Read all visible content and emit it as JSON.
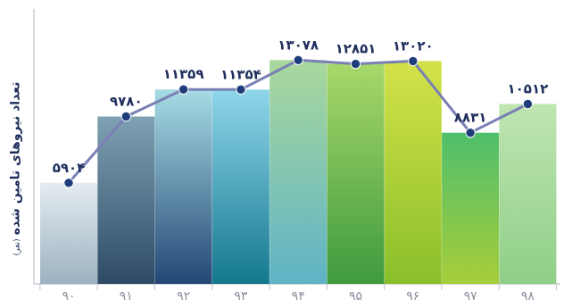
{
  "chart_data": {
    "type": "bar",
    "categories": [
      "۹۰",
      "۹۱",
      "۹۲",
      "۹۳",
      "۹۴",
      "۹۵",
      "۹۶",
      "۹۷",
      "۹۸"
    ],
    "values": [
      5904,
      9780,
      11359,
      11354,
      13078,
      12851,
      13020,
      8831,
      10512
    ],
    "value_labels": [
      "۵۹۰۴",
      "۹۷۸۰",
      "۱۱۳۵۹",
      "۱۱۳۵۴",
      "۱۳۰۷۸",
      "۱۲۸۵۱",
      "۱۳۰۲۰",
      "۸۸۳۱",
      "۱۰۵۱۲"
    ],
    "title": "",
    "xlabel": "",
    "ylabel": "تعداد نیروهای تامین شده",
    "ylabel_unit": "(نفر)",
    "ylim": [
      0,
      14500
    ],
    "grid": false,
    "legend": "none",
    "line_overlay": true,
    "colors": {
      "line": "#7a7fb5",
      "marker": "#1f3d7a",
      "label": "#1f2f5c",
      "axis": "#c8ccd6",
      "tick_label": "#8a8f9c"
    },
    "bar_gradients": [
      [
        "#e4ecf1",
        "#9db1c0"
      ],
      [
        "#7fa1b3",
        "#2e4a66"
      ],
      [
        "#a7dbe4",
        "#244775"
      ],
      [
        "#8fd6ea",
        "#14788f"
      ],
      [
        "#a9d89c",
        "#5fb3c6"
      ],
      [
        "#a8d86a",
        "#3e9a3e"
      ],
      [
        "#d4e24a",
        "#89bf2a"
      ],
      [
        "#4fbf6c",
        "#a6cd3a"
      ],
      [
        "#bfe5b0",
        "#8fcf88"
      ]
    ]
  }
}
